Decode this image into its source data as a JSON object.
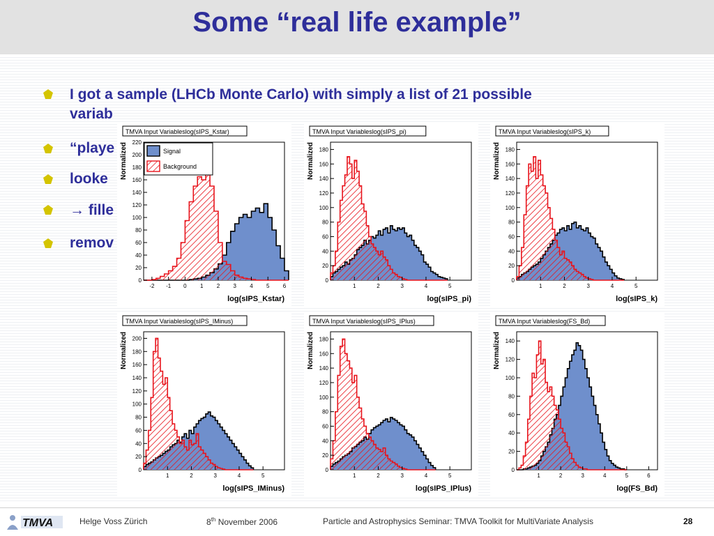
{
  "slide": {
    "title": "Some “real life example”",
    "bullets": [
      {
        "text": "I got a sample (LHCb Monte Carlo) with simply a list of 21 possible"
      },
      {
        "text": "variab"
      },
      {
        "text": "“playe"
      },
      {
        "text": "looke"
      },
      {
        "text": "→ fille"
      },
      {
        "text": "remov"
      }
    ]
  },
  "footer": {
    "logo": "TMVA",
    "author": "Helge Voss Zürich",
    "date_day": "8",
    "date_sup": "th",
    "date_rest": " November 2006",
    "event": "Particle and Astrophysics Seminar:   TMVA Toolkit for MultiVariate Analysis",
    "page": "28"
  },
  "legend": {
    "signal": "Signal",
    "background": "Background"
  },
  "colors": {
    "signal_fill": "#6f8fcc",
    "background_line": "#e8141c",
    "title_blue": "#2e2e9a"
  },
  "chart_data": [
    {
      "type": "bar",
      "title": "TMVA Input Variableslog(sIPS_Kstar)",
      "xlabel": "log(sIPS_Kstar)",
      "ylabel": "Normalized",
      "xlim": [
        -2.5,
        6
      ],
      "ylim": [
        0,
        220
      ],
      "xticks": [
        -2,
        -1,
        0,
        1,
        2,
        3,
        4,
        5,
        6
      ],
      "yticks": [
        0,
        20,
        40,
        60,
        80,
        100,
        120,
        140,
        160,
        180,
        200,
        220
      ],
      "legend": true,
      "x0": -2.5,
      "binw": 0.25,
      "series": [
        {
          "name": "Signal",
          "values": [
            0,
            0,
            0,
            0,
            0,
            0,
            0,
            0,
            0,
            0,
            0,
            1,
            2,
            3,
            5,
            8,
            12,
            18,
            26,
            40,
            60,
            78,
            90,
            100,
            105,
            100,
            110,
            115,
            108,
            122,
            100,
            80,
            55,
            35,
            15
          ]
        },
        {
          "name": "Background",
          "values": [
            0,
            0,
            1,
            3,
            6,
            10,
            15,
            22,
            35,
            60,
            95,
            125,
            150,
            165,
            160,
            178,
            150,
            110,
            60,
            30,
            25,
            15,
            8,
            5,
            3,
            2,
            1,
            0,
            0,
            0,
            0,
            0,
            0,
            0,
            0
          ]
        }
      ]
    },
    {
      "type": "bar",
      "title": "TMVA Input Variableslog(sIPS_pi)",
      "xlabel": "log(sIPS_pi)",
      "ylabel": "Normalized",
      "xlim": [
        0,
        5.9
      ],
      "ylim": [
        0,
        190
      ],
      "xticks": [
        1,
        2,
        3,
        4,
        5
      ],
      "yticks": [
        0,
        20,
        40,
        60,
        80,
        100,
        120,
        140,
        160,
        180
      ],
      "x0": 0.0,
      "binw": 0.1,
      "series": [
        {
          "name": "Signal",
          "values": [
            5,
            10,
            12,
            15,
            18,
            20,
            25,
            22,
            28,
            30,
            35,
            42,
            45,
            48,
            55,
            50,
            55,
            60,
            58,
            62,
            68,
            62,
            70,
            72,
            65,
            75,
            70,
            68,
            72,
            70,
            72,
            65,
            60,
            62,
            55,
            48,
            45,
            40,
            35,
            25,
            22,
            18,
            12,
            10,
            8,
            5,
            4,
            3,
            2
          ]
        },
        {
          "name": "Background",
          "values": [
            10,
            20,
            40,
            80,
            110,
            130,
            145,
            170,
            160,
            140,
            165,
            150,
            130,
            105,
            95,
            75,
            60,
            50,
            45,
            40,
            35,
            40,
            32,
            28,
            20,
            15,
            10,
            8,
            5,
            4,
            2,
            1,
            0,
            0,
            0,
            0,
            0,
            0,
            0,
            0,
            0,
            0,
            0,
            0,
            0,
            0,
            0,
            0,
            0
          ]
        }
      ]
    },
    {
      "type": "bar",
      "title": "TMVA Input Variableslog(sIPS_k)",
      "xlabel": "log(sIPS_k)",
      "ylabel": "Normalized",
      "xlim": [
        0,
        5.9
      ],
      "ylim": [
        0,
        190
      ],
      "xticks": [
        1,
        2,
        3,
        4,
        5
      ],
      "yticks": [
        0,
        20,
        40,
        60,
        80,
        100,
        120,
        140,
        160,
        180
      ],
      "x0": 0.0,
      "binw": 0.1,
      "series": [
        {
          "name": "Signal",
          "values": [
            3,
            5,
            8,
            10,
            12,
            15,
            18,
            20,
            22,
            25,
            30,
            35,
            40,
            45,
            50,
            55,
            62,
            65,
            70,
            72,
            68,
            75,
            70,
            78,
            80,
            72,
            75,
            70,
            68,
            72,
            65,
            60,
            58,
            50,
            45,
            40,
            32,
            25,
            20,
            15,
            10,
            6,
            3,
            2,
            1
          ]
        },
        {
          "name": "Background",
          "values": [
            5,
            20,
            45,
            90,
            130,
            160,
            150,
            170,
            140,
            165,
            145,
            130,
            120,
            100,
            85,
            70,
            55,
            45,
            35,
            40,
            30,
            28,
            25,
            20,
            15,
            12,
            10,
            8,
            5,
            3,
            2,
            1,
            0,
            0,
            0,
            0,
            0,
            0,
            0,
            0,
            0,
            0,
            0,
            0,
            0
          ]
        }
      ]
    },
    {
      "type": "bar",
      "title": "TMVA Input Variableslog(sIPS_IMinus)",
      "xlabel": "log(sIPS_IMinus)",
      "ylabel": "Normalized",
      "xlim": [
        0,
        5.9
      ],
      "ylim": [
        0,
        210
      ],
      "xticks": [
        1,
        2,
        3,
        4,
        5
      ],
      "yticks": [
        0,
        20,
        40,
        60,
        80,
        100,
        120,
        140,
        160,
        180,
        200
      ],
      "x0": 0.0,
      "binw": 0.1,
      "series": [
        {
          "name": "Signal",
          "values": [
            5,
            8,
            10,
            12,
            15,
            18,
            20,
            22,
            25,
            28,
            30,
            35,
            38,
            40,
            45,
            42,
            50,
            55,
            48,
            60,
            55,
            65,
            70,
            75,
            78,
            80,
            85,
            88,
            82,
            80,
            75,
            70,
            65,
            60,
            55,
            50,
            45,
            40,
            35,
            30,
            25,
            20,
            15,
            10,
            6,
            3
          ]
        },
        {
          "name": "Background",
          "values": [
            10,
            30,
            60,
            110,
            180,
            200,
            170,
            150,
            130,
            140,
            110,
            90,
            70,
            60,
            50,
            40,
            45,
            35,
            30,
            45,
            38,
            40,
            55,
            35,
            30,
            25,
            20,
            15,
            10,
            8,
            5,
            3,
            2,
            1,
            0,
            0,
            0,
            0,
            0,
            0,
            0,
            0,
            0,
            0,
            0,
            0
          ]
        }
      ]
    },
    {
      "type": "bar",
      "title": "TMVA Input Variableslog(sIPS_IPlus)",
      "xlabel": "log(sIPS_IPlus)",
      "ylabel": "Normalized",
      "xlim": [
        0,
        5.9
      ],
      "ylim": [
        0,
        190
      ],
      "xticks": [
        1,
        2,
        3,
        4,
        5
      ],
      "yticks": [
        0,
        20,
        40,
        60,
        80,
        100,
        120,
        140,
        160,
        180
      ],
      "x0": 0.0,
      "binw": 0.1,
      "series": [
        {
          "name": "Signal",
          "values": [
            5,
            8,
            10,
            12,
            15,
            18,
            20,
            22,
            25,
            30,
            32,
            35,
            38,
            40,
            45,
            42,
            50,
            55,
            58,
            60,
            62,
            65,
            68,
            70,
            66,
            72,
            70,
            68,
            65,
            62,
            60,
            55,
            50,
            48,
            45,
            40,
            35,
            30,
            25,
            20,
            15,
            10,
            6,
            3
          ]
        },
        {
          "name": "Background",
          "values": [
            15,
            40,
            80,
            130,
            170,
            180,
            160,
            150,
            140,
            120,
            130,
            100,
            85,
            70,
            60,
            50,
            45,
            40,
            35,
            30,
            28,
            25,
            30,
            20,
            15,
            12,
            10,
            8,
            5,
            3,
            2,
            1,
            0,
            0,
            0,
            0,
            0,
            0,
            0,
            0,
            0,
            0,
            0,
            0
          ]
        }
      ]
    },
    {
      "type": "bar",
      "title": "TMVA Input Variableslog(FS_Bd)",
      "xlabel": "log(FS_Bd)",
      "ylabel": "Normalized",
      "xlim": [
        0,
        6.4
      ],
      "ylim": [
        0,
        150
      ],
      "xticks": [
        1,
        2,
        3,
        4,
        5,
        6
      ],
      "yticks": [
        0,
        20,
        40,
        60,
        80,
        100,
        120,
        140
      ],
      "x0": 0.0,
      "binw": 0.1,
      "series": [
        {
          "name": "Signal",
          "values": [
            0,
            0,
            0,
            1,
            1,
            2,
            3,
            4,
            5,
            7,
            10,
            15,
            20,
            25,
            30,
            38,
            45,
            55,
            60,
            70,
            80,
            90,
            100,
            110,
            118,
            125,
            130,
            138,
            135,
            130,
            120,
            110,
            100,
            90,
            80,
            70,
            60,
            50,
            40,
            30,
            22,
            15,
            10,
            7,
            5,
            3,
            2,
            1,
            1,
            0
          ]
        },
        {
          "name": "Background",
          "values": [
            0,
            2,
            5,
            15,
            30,
            55,
            80,
            105,
            100,
            125,
            140,
            115,
            120,
            95,
            85,
            90,
            80,
            70,
            65,
            55,
            45,
            40,
            30,
            25,
            18,
            12,
            8,
            5,
            3,
            2,
            1,
            1,
            0,
            0,
            0,
            0,
            0,
            0,
            0,
            0,
            0,
            0,
            0,
            0,
            0,
            0,
            0,
            0,
            0,
            0
          ]
        }
      ]
    }
  ]
}
